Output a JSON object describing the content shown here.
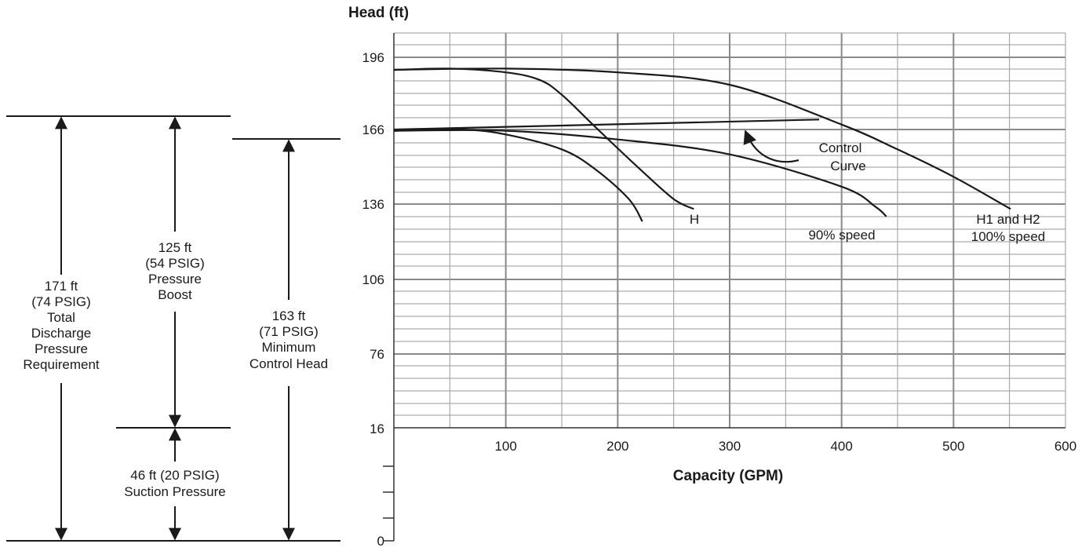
{
  "chart_data": {
    "type": "line",
    "y_axis_title": "Head (ft)",
    "x_axis_title": "Capacity (GPM)",
    "y_ticks": [
      "196",
      "166",
      "136",
      "106",
      "76",
      "16",
      "0"
    ],
    "x_ticks": [
      "100",
      "200",
      "300",
      "400",
      "500",
      "600"
    ],
    "xlim": [
      0,
      600
    ],
    "grid": true,
    "series": [
      {
        "x": [
          0,
          50,
          100,
          130,
          150,
          180,
          220,
          250,
          268
        ],
        "y": [
          190,
          190.5,
          189,
          186,
          180,
          167,
          150,
          138,
          134
        ]
      },
      {
        "x": [
          0,
          60,
          100,
          150,
          180,
          210,
          222
        ],
        "y": [
          165.5,
          166,
          164,
          158,
          150,
          138,
          129
        ]
      },
      {
        "x": [
          0,
          100,
          200,
          300,
          400,
          430,
          440
        ],
        "y": [
          165.5,
          165.5,
          162,
          156,
          143,
          135,
          131
        ]
      },
      {
        "x": [
          0,
          100,
          200,
          300,
          400,
          450,
          500,
          551
        ],
        "y": [
          190,
          190.5,
          189,
          184,
          168,
          158,
          147,
          134
        ]
      },
      {
        "x": [
          0,
          380
        ],
        "y": [
          166,
          170
        ]
      }
    ],
    "series_labels": [
      {
        "text": "H",
        "target": 0
      },
      {
        "text": "90% speed",
        "target": 2
      },
      {
        "text": "H1 and H2",
        "target": 3
      },
      {
        "text": "100% speed",
        "target": 3
      }
    ],
    "annotations": {
      "control_curve": [
        "Control",
        "Curve"
      ]
    }
  },
  "dimension_diagram": {
    "total": [
      "171 ft",
      "(74 PSIG)",
      "Total",
      "Discharge",
      "Pressure",
      "Requirement"
    ],
    "boost": [
      "125 ft",
      "(54 PSIG)",
      "Pressure",
      "Boost"
    ],
    "suction": [
      "46 ft (20 PSIG)",
      "Suction Pressure"
    ],
    "minimum": [
      "163 ft",
      "(71 PSIG)",
      "Minimum",
      "Control Head"
    ]
  }
}
